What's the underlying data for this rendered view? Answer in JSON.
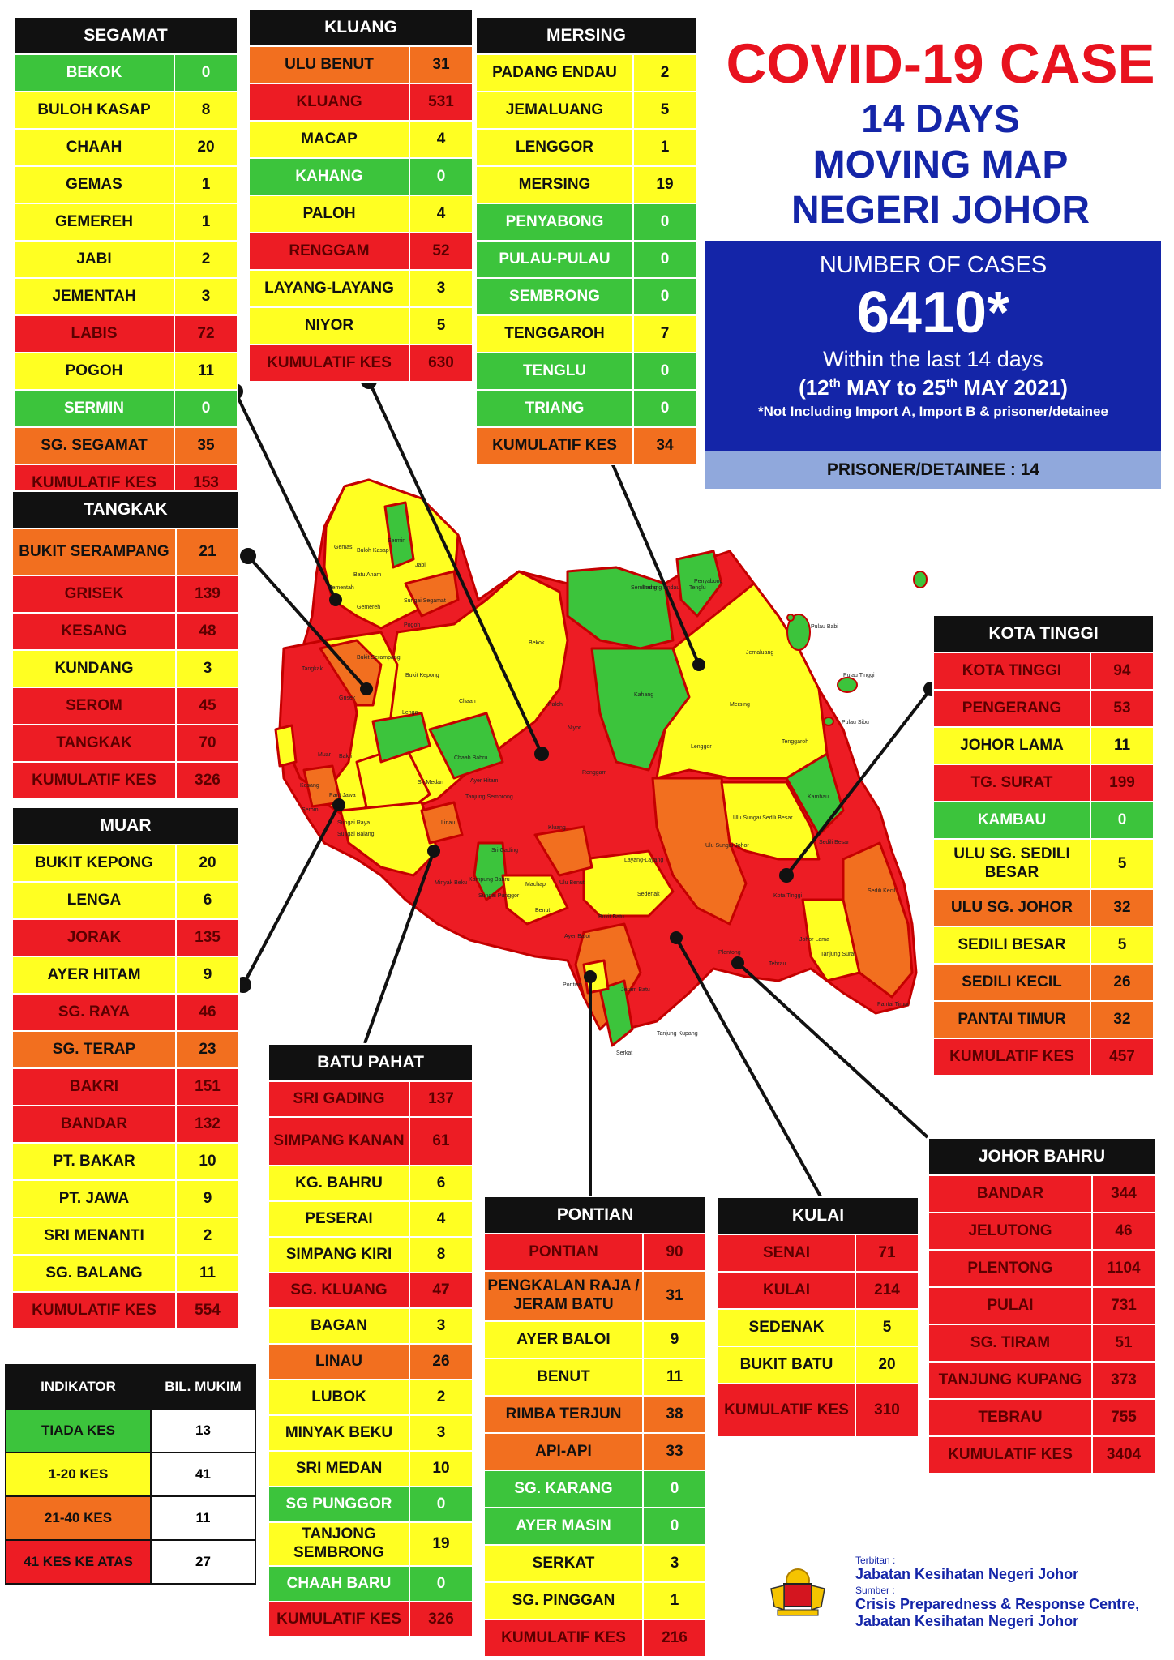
{
  "title": {
    "line1": "COVID-19 CASE",
    "line2": "14 DAYS",
    "line3": "MOVING MAP",
    "line4": "NEGERI JOHOR"
  },
  "summary": {
    "label": "NUMBER OF CASES",
    "total": "6410*",
    "within": "Within the last 14 days",
    "range_a": "(12",
    "range_sup1": "th",
    "range_b": " MAY to 25",
    "range_sup2": "th",
    "range_c": " MAY 2021)",
    "note": "*Not Including Import A, Import B & prisoner/detainee",
    "prisoner": "PRISONER/DETAINEE : 14"
  },
  "colors": {
    "green": "#3cc43c",
    "yellow": "#ffff22",
    "orange": "#f26f1f",
    "red": "#ed1c24",
    "navy": "#1425a8"
  },
  "districts": {
    "segamat": {
      "name": "SEGAMAT",
      "rows": [
        {
          "name": "BEKOK",
          "value": "0",
          "level": "g"
        },
        {
          "name": "BULOH KASAP",
          "value": "8",
          "level": "y"
        },
        {
          "name": "CHAAH",
          "value": "20",
          "level": "y"
        },
        {
          "name": "GEMAS",
          "value": "1",
          "level": "y"
        },
        {
          "name": "GEMEREH",
          "value": "1",
          "level": "y"
        },
        {
          "name": "JABI",
          "value": "2",
          "level": "y"
        },
        {
          "name": "JEMENTAH",
          "value": "3",
          "level": "y"
        },
        {
          "name": "LABIS",
          "value": "72",
          "level": "r"
        },
        {
          "name": "POGOH",
          "value": "11",
          "level": "y"
        },
        {
          "name": "SERMIN",
          "value": "0",
          "level": "g"
        },
        {
          "name": "SG. SEGAMAT",
          "value": "35",
          "level": "o"
        },
        {
          "name": "KUMULATIF KES",
          "value": "153",
          "level": "r"
        }
      ]
    },
    "kluang": {
      "name": "KLUANG",
      "rows": [
        {
          "name": "ULU BENUT",
          "value": "31",
          "level": "o"
        },
        {
          "name": "KLUANG",
          "value": "531",
          "level": "r"
        },
        {
          "name": "MACAP",
          "value": "4",
          "level": "y"
        },
        {
          "name": "KAHANG",
          "value": "0",
          "level": "g"
        },
        {
          "name": "PALOH",
          "value": "4",
          "level": "y"
        },
        {
          "name": "RENGGAM",
          "value": "52",
          "level": "r"
        },
        {
          "name": "LAYANG-LAYANG",
          "value": "3",
          "level": "y"
        },
        {
          "name": "NIYOR",
          "value": "5",
          "level": "y"
        },
        {
          "name": "KUMULATIF KES",
          "value": "630",
          "level": "r"
        }
      ]
    },
    "mersing": {
      "name": "MERSING",
      "rows": [
        {
          "name": "PADANG ENDAU",
          "value": "2",
          "level": "y"
        },
        {
          "name": "JEMALUANG",
          "value": "5",
          "level": "y"
        },
        {
          "name": "LENGGOR",
          "value": "1",
          "level": "y"
        },
        {
          "name": "MERSING",
          "value": "19",
          "level": "y"
        },
        {
          "name": "PENYABONG",
          "value": "0",
          "level": "g"
        },
        {
          "name": "PULAU-PULAU",
          "value": "0",
          "level": "g"
        },
        {
          "name": "SEMBRONG",
          "value": "0",
          "level": "g"
        },
        {
          "name": "TENGGAROH",
          "value": "7",
          "level": "y"
        },
        {
          "name": "TENGLU",
          "value": "0",
          "level": "g"
        },
        {
          "name": "TRIANG",
          "value": "0",
          "level": "g"
        },
        {
          "name": "KUMULATIF KES",
          "value": "34",
          "level": "o"
        }
      ]
    },
    "tangkak": {
      "name": "TANGKAK",
      "rows": [
        {
          "name": "BUKIT SERAMPANG",
          "value": "21",
          "level": "o"
        },
        {
          "name": "GRISEK",
          "value": "139",
          "level": "r"
        },
        {
          "name": "KESANG",
          "value": "48",
          "level": "r"
        },
        {
          "name": "KUNDANG",
          "value": "3",
          "level": "y"
        },
        {
          "name": "SEROM",
          "value": "45",
          "level": "r"
        },
        {
          "name": "TANGKAK",
          "value": "70",
          "level": "r"
        },
        {
          "name": "KUMULATIF KES",
          "value": "326",
          "level": "r"
        }
      ]
    },
    "muar": {
      "name": "MUAR",
      "rows": [
        {
          "name": "BUKIT KEPONG",
          "value": "20",
          "level": "y"
        },
        {
          "name": "LENGA",
          "value": "6",
          "level": "y"
        },
        {
          "name": "JORAK",
          "value": "135",
          "level": "r"
        },
        {
          "name": "AYER HITAM",
          "value": "9",
          "level": "y"
        },
        {
          "name": "SG. RAYA",
          "value": "46",
          "level": "r"
        },
        {
          "name": "SG. TERAP",
          "value": "23",
          "level": "o"
        },
        {
          "name": "BAKRI",
          "value": "151",
          "level": "r"
        },
        {
          "name": "BANDAR",
          "value": "132",
          "level": "r"
        },
        {
          "name": "PT. BAKAR",
          "value": "10",
          "level": "y"
        },
        {
          "name": "PT. JAWA",
          "value": "9",
          "level": "y"
        },
        {
          "name": "SRI MENANTI",
          "value": "2",
          "level": "y"
        },
        {
          "name": "SG. BALANG",
          "value": "11",
          "level": "y"
        },
        {
          "name": "KUMULATIF KES",
          "value": "554",
          "level": "r"
        }
      ]
    },
    "batupahat": {
      "name": "BATU PAHAT",
      "rows": [
        {
          "name": "SRI GADING",
          "value": "137",
          "level": "r"
        },
        {
          "name": "SIMPANG KANAN",
          "value": "61",
          "level": "r"
        },
        {
          "name": "KG. BAHRU",
          "value": "6",
          "level": "y"
        },
        {
          "name": "PESERAI",
          "value": "4",
          "level": "y"
        },
        {
          "name": "SIMPANG KIRI",
          "value": "8",
          "level": "y"
        },
        {
          "name": "SG. KLUANG",
          "value": "47",
          "level": "r"
        },
        {
          "name": "BAGAN",
          "value": "3",
          "level": "y"
        },
        {
          "name": "LINAU",
          "value": "26",
          "level": "o"
        },
        {
          "name": "LUBOK",
          "value": "2",
          "level": "y"
        },
        {
          "name": "MINYAK BEKU",
          "value": "3",
          "level": "y"
        },
        {
          "name": "SRI MEDAN",
          "value": "10",
          "level": "y"
        },
        {
          "name": "SG PUNGGOR",
          "value": "0",
          "level": "g"
        },
        {
          "name": "TANJONG SEMBRONG",
          "value": "19",
          "level": "y"
        },
        {
          "name": "CHAAH BARU",
          "value": "0",
          "level": "g"
        },
        {
          "name": "KUMULATIF KES",
          "value": "326",
          "level": "r"
        }
      ]
    },
    "pontian": {
      "name": "PONTIAN",
      "rows": [
        {
          "name": "PONTIAN",
          "value": "90",
          "level": "r"
        },
        {
          "name": "PENGKALAN RAJA / JERAM BATU",
          "value": "31",
          "level": "o"
        },
        {
          "name": "AYER BALOI",
          "value": "9",
          "level": "y"
        },
        {
          "name": "BENUT",
          "value": "11",
          "level": "y"
        },
        {
          "name": "RIMBA TERJUN",
          "value": "38",
          "level": "o"
        },
        {
          "name": "API-API",
          "value": "33",
          "level": "o"
        },
        {
          "name": "SG. KARANG",
          "value": "0",
          "level": "g"
        },
        {
          "name": "AYER MASIN",
          "value": "0",
          "level": "g"
        },
        {
          "name": "SERKAT",
          "value": "3",
          "level": "y"
        },
        {
          "name": "SG. PINGGAN",
          "value": "1",
          "level": "y"
        },
        {
          "name": "KUMULATIF KES",
          "value": "216",
          "level": "r"
        }
      ]
    },
    "kulai": {
      "name": "KULAI",
      "rows": [
        {
          "name": "SENAI",
          "value": "71",
          "level": "r"
        },
        {
          "name": "KULAI",
          "value": "214",
          "level": "r"
        },
        {
          "name": "SEDENAK",
          "value": "5",
          "level": "y"
        },
        {
          "name": "BUKIT BATU",
          "value": "20",
          "level": "y"
        },
        {
          "name": "KUMULATIF KES",
          "value": "310",
          "level": "r"
        }
      ]
    },
    "kotatinggi": {
      "name": "KOTA TINGGI",
      "rows": [
        {
          "name": "KOTA TINGGI",
          "value": "94",
          "level": "r"
        },
        {
          "name": "PENGERANG",
          "value": "53",
          "level": "r"
        },
        {
          "name": "JOHOR LAMA",
          "value": "11",
          "level": "y"
        },
        {
          "name": "TG. SURAT",
          "value": "199",
          "level": "r"
        },
        {
          "name": "KAMBAU",
          "value": "0",
          "level": "g"
        },
        {
          "name": "ULU SG. SEDILI BESAR",
          "value": "5",
          "level": "y"
        },
        {
          "name": "ULU  SG. JOHOR",
          "value": "32",
          "level": "o"
        },
        {
          "name": "SEDILI BESAR",
          "value": "5",
          "level": "y"
        },
        {
          "name": "SEDILI KECIL",
          "value": "26",
          "level": "o"
        },
        {
          "name": "PANTAI TIMUR",
          "value": "32",
          "level": "o"
        },
        {
          "name": "KUMULATIF KES",
          "value": "457",
          "level": "r"
        }
      ]
    },
    "johorbahru": {
      "name": "JOHOR BAHRU",
      "rows": [
        {
          "name": "BANDAR",
          "value": "344",
          "level": "r"
        },
        {
          "name": "JELUTONG",
          "value": "46",
          "level": "r"
        },
        {
          "name": "PLENTONG",
          "value": "1104",
          "level": "r"
        },
        {
          "name": "PULAI",
          "value": "731",
          "level": "r"
        },
        {
          "name": "SG. TIRAM",
          "value": "51",
          "level": "r"
        },
        {
          "name": "TANJUNG KUPANG",
          "value": "373",
          "level": "r"
        },
        {
          "name": "TEBRAU",
          "value": "755",
          "level": "r"
        },
        {
          "name": "KUMULATIF KES",
          "value": "3404",
          "level": "r"
        }
      ]
    }
  },
  "legend": {
    "header_indicator": "INDIKATOR",
    "header_count": "BIL. MUKIM",
    "rows": [
      {
        "label": "TIADA KES",
        "count": "13",
        "level": "g"
      },
      {
        "label": "1-20 KES",
        "count": "41",
        "level": "y"
      },
      {
        "label": "21-40 KES",
        "count": "11",
        "level": "o"
      },
      {
        "label": "41 KES KE ATAS",
        "count": "27",
        "level": "r"
      }
    ]
  },
  "map_labels": [
    "Gemas",
    "Buloh Kasap",
    "Sermin",
    "Jabi",
    "Batu Anam",
    "Jementah",
    "Gemereh",
    "Sungai Segamat",
    "Pogoh",
    "Bukit Serampang",
    "Tangkak",
    "Bukit Kepong",
    "Grisek",
    "Lenga",
    "Chaah",
    "Bekok",
    "Paloh",
    "Niyor",
    "Kahang",
    "Chaah Bahru",
    "Sri Medan",
    "Ayer Hitam",
    "Tanjung Sembrong",
    "Lenggor",
    "Mersing",
    "Jemaluang",
    "Tenggaroh",
    "Tenglu",
    "Penyabong",
    "Padang Endau",
    "Sembrong",
    "Pulau Babi",
    "Pulau Tinggi",
    "Pulau Sibu",
    "Renggam",
    "Kluang",
    "Ulu Sungai Johor",
    "Ulu Sungai Sedili Besar",
    "Kambau",
    "Sedili Besar",
    "Sedili Kecil",
    "Kota Tinggi",
    "Johor Lama",
    "Tanjung Surat",
    "Pantai Timur",
    "Layang-Layang",
    "Sedenak",
    "Bukit Batu",
    "Ulu Benut",
    "Machap",
    "Sri Gading",
    "Linau",
    "Minyak Beku",
    "Kampung Bahru",
    "Sungai Punggor",
    "Benut",
    "Ayer Baloi",
    "Pontian",
    "Jeram Batu",
    "Serkat",
    "Tanjung Kupang",
    "Plentong",
    "Tebrau",
    "Muar",
    "Bakri",
    "Kesang",
    "Serom",
    "Sungai Balang",
    "Parit Jawa",
    "Sungai Raya"
  ],
  "footer": {
    "terbitan_label": "Terbitan :",
    "publisher": "Jabatan Kesihatan Negeri Johor",
    "sumber_label": "Sumber :",
    "source1": "Crisis Preparedness & Response Centre,",
    "source2": "Jabatan Kesihatan Negeri Johor"
  }
}
